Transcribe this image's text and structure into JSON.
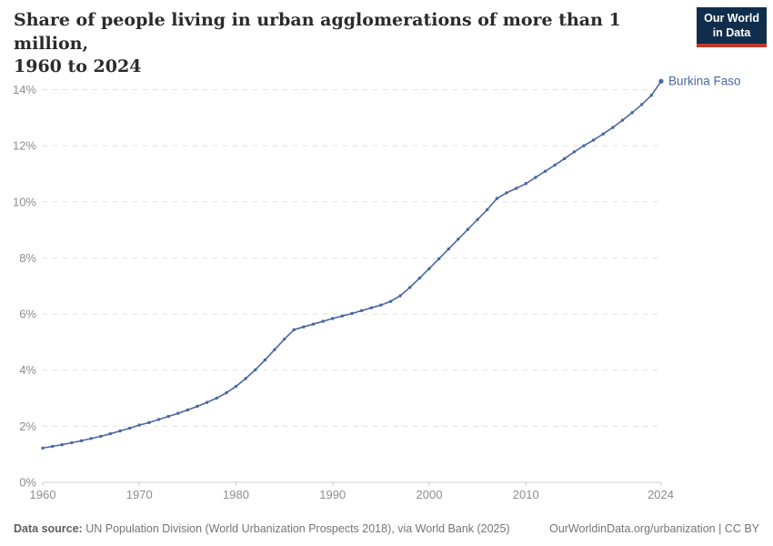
{
  "header": {
    "title_line1": "Share of people living in urban agglomerations of more than 1 million,",
    "title_line2": "1960 to 2024",
    "logo": {
      "line1": "Our World",
      "line2": "in Data",
      "bg_color": "#102d4c",
      "accent_color": "#c0392b"
    }
  },
  "chart_data": {
    "type": "line",
    "title": "Share of people living in urban agglomerations of more than 1 million, 1960 to 2024",
    "series": [
      {
        "name": "Burkina Faso",
        "color": "#4a67a3",
        "x": [
          1960,
          1961,
          1962,
          1963,
          1964,
          1965,
          1966,
          1967,
          1968,
          1969,
          1970,
          1971,
          1972,
          1973,
          1974,
          1975,
          1976,
          1977,
          1978,
          1979,
          1980,
          1981,
          1982,
          1983,
          1984,
          1985,
          1986,
          1987,
          1988,
          1989,
          1990,
          1991,
          1992,
          1993,
          1994,
          1995,
          1996,
          1997,
          1998,
          1999,
          2000,
          2001,
          2002,
          2003,
          2004,
          2005,
          2006,
          2007,
          2008,
          2009,
          2010,
          2011,
          2012,
          2013,
          2014,
          2015,
          2016,
          2017,
          2018,
          2019,
          2020,
          2021,
          2022,
          2023,
          2024
        ],
        "values": [
          1.22,
          1.28,
          1.34,
          1.41,
          1.48,
          1.56,
          1.64,
          1.73,
          1.83,
          1.93,
          2.04,
          2.13,
          2.24,
          2.35,
          2.46,
          2.58,
          2.71,
          2.85,
          3.0,
          3.19,
          3.42,
          3.7,
          4.01,
          4.36,
          4.73,
          5.1,
          5.44,
          5.54,
          5.64,
          5.74,
          5.84,
          5.93,
          6.02,
          6.12,
          6.22,
          6.32,
          6.45,
          6.65,
          6.95,
          7.28,
          7.62,
          7.97,
          8.32,
          8.67,
          9.02,
          9.37,
          9.72,
          10.12,
          10.32,
          10.48,
          10.65,
          10.87,
          11.09,
          11.31,
          11.54,
          11.78,
          12.0,
          12.2,
          12.42,
          12.65,
          12.91,
          13.18,
          13.47,
          13.8,
          14.3
        ]
      }
    ],
    "unit": "%",
    "xlabel": "",
    "ylabel": "",
    "xlim": [
      1960,
      2024
    ],
    "ylim": [
      0,
      14
    ],
    "yticks": [
      0,
      2,
      4,
      6,
      8,
      10,
      12,
      14
    ],
    "xticks": [
      1960,
      1970,
      1980,
      1990,
      2000,
      2010,
      2024
    ],
    "grid": "horizontal-dashed",
    "legend_position": "end-of-line-label",
    "axis_color": "#cccccc",
    "grid_color": "#e0e0e0",
    "tick_label_color": "#8e8e8e"
  },
  "footer": {
    "source_label": "Data source:",
    "source_text": " UN Population Division (World Urbanization Prospects 2018), via World Bank (2025)",
    "license_text": "OurWorldinData.org/urbanization | CC BY"
  }
}
